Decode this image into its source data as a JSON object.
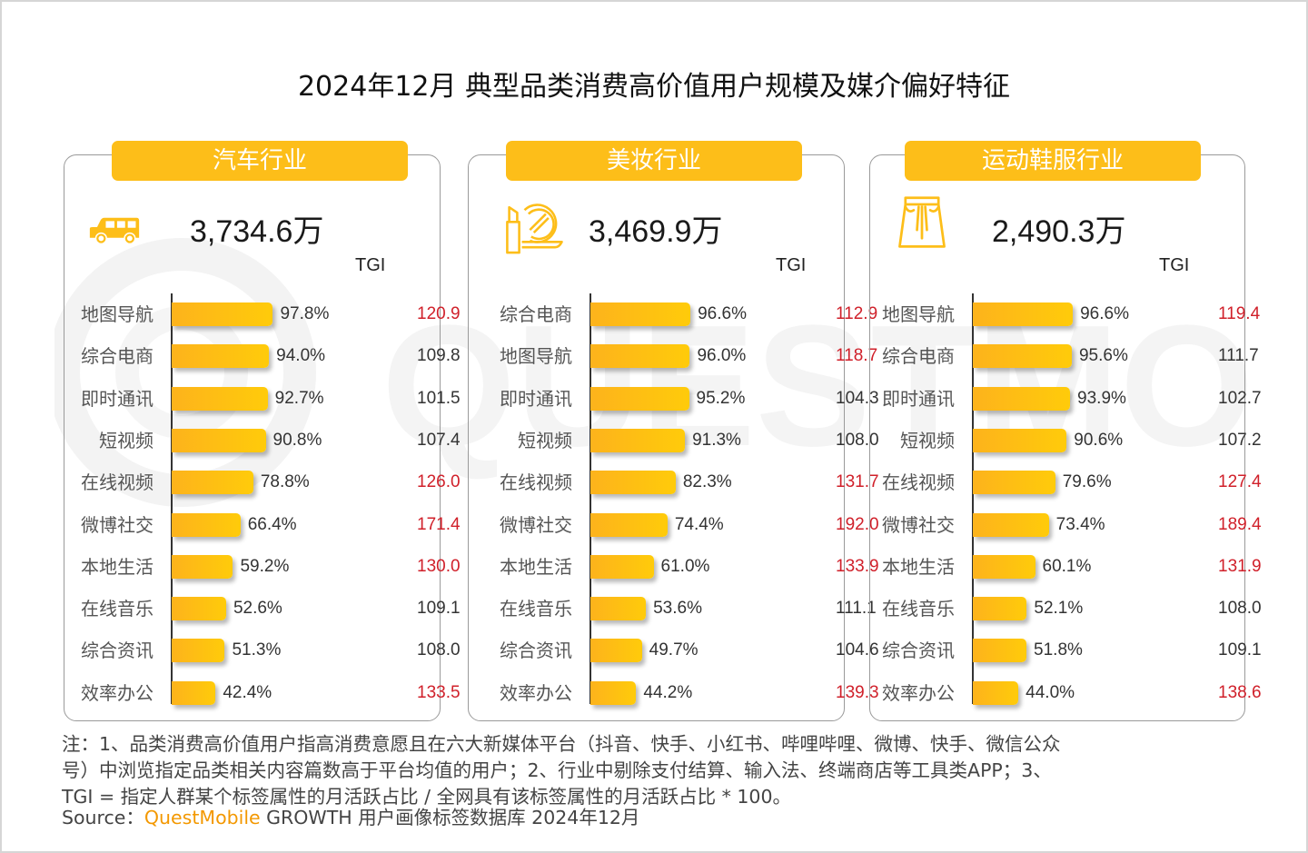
{
  "title": "2024年12月 典型品类消费高价值用户规模及媒介偏好特征",
  "watermark": "QUESTMOBILE",
  "colors": {
    "accent": "#FDBE19",
    "bar_start": "#FDB31C",
    "bar_end": "#FFCB0A",
    "tgi_high": "#D0202A",
    "tgi_normal": "#333333",
    "brand": "#F39800"
  },
  "chart_data": [
    {
      "type": "bar",
      "orientation": "horizontal",
      "title": "汽车行业",
      "icon": "car-icon",
      "total_users": "3,734.6万",
      "tgi_header": "TGI",
      "categories": [
        "地图导航",
        "综合电商",
        "即时通讯",
        "短视频",
        "在线视频",
        "微博社交",
        "本地生活",
        "在线音乐",
        "综合资讯",
        "效率办公"
      ],
      "values": [
        97.8,
        94.0,
        92.7,
        90.8,
        78.8,
        66.4,
        59.2,
        52.6,
        51.3,
        42.4
      ],
      "value_labels": [
        "97.8%",
        "94.0%",
        "92.7%",
        "90.8%",
        "78.8%",
        "66.4%",
        "59.2%",
        "52.6%",
        "51.3%",
        "42.4%"
      ],
      "tgi": [
        120.9,
        109.8,
        101.5,
        107.4,
        126.0,
        171.4,
        130.0,
        109.1,
        108.0,
        133.5
      ],
      "tgi_labels": [
        "120.9",
        "109.8",
        "101.5",
        "107.4",
        "126.0",
        "171.4",
        "130.0",
        "109.1",
        "108.0",
        "133.5"
      ],
      "tgi_highlight": [
        true,
        false,
        false,
        false,
        true,
        true,
        true,
        false,
        false,
        true
      ],
      "xlim": [
        0,
        100
      ],
      "unit": "%"
    },
    {
      "type": "bar",
      "orientation": "horizontal",
      "title": "美妆行业",
      "icon": "lipstick-mirror-icon",
      "total_users": "3,469.9万",
      "tgi_header": "TGI",
      "categories": [
        "综合电商",
        "地图导航",
        "即时通讯",
        "短视频",
        "在线视频",
        "微博社交",
        "本地生活",
        "在线音乐",
        "综合资讯",
        "效率办公"
      ],
      "values": [
        96.6,
        96.0,
        95.2,
        91.3,
        82.3,
        74.4,
        61.0,
        53.6,
        49.7,
        44.2
      ],
      "value_labels": [
        "96.6%",
        "96.0%",
        "95.2%",
        "91.3%",
        "82.3%",
        "74.4%",
        "61.0%",
        "53.6%",
        "49.7%",
        "44.2%"
      ],
      "tgi": [
        112.9,
        118.7,
        104.3,
        108.0,
        131.7,
        192.0,
        133.9,
        111.1,
        104.6,
        139.3
      ],
      "tgi_labels": [
        "112.9",
        "118.7",
        "104.3",
        "108.0",
        "131.7",
        "192.0",
        "133.9",
        "111.1",
        "104.6",
        "139.3"
      ],
      "tgi_highlight": [
        true,
        true,
        false,
        false,
        true,
        true,
        true,
        false,
        false,
        true
      ],
      "xlim": [
        0,
        100
      ],
      "unit": "%"
    },
    {
      "type": "bar",
      "orientation": "horizontal",
      "title": "运动鞋服行业",
      "icon": "skirt-icon",
      "total_users": "2,490.3万",
      "tgi_header": "TGI",
      "categories": [
        "地图导航",
        "综合电商",
        "即时通讯",
        "短视频",
        "在线视频",
        "微博社交",
        "本地生活",
        "在线音乐",
        "综合资讯",
        "效率办公"
      ],
      "values": [
        96.6,
        95.6,
        93.9,
        90.6,
        79.6,
        73.4,
        60.1,
        52.1,
        51.8,
        44.0
      ],
      "value_labels": [
        "96.6%",
        "95.6%",
        "93.9%",
        "90.6%",
        "79.6%",
        "73.4%",
        "60.1%",
        "52.1%",
        "51.8%",
        "44.0%"
      ],
      "tgi": [
        119.4,
        111.7,
        102.7,
        107.2,
        127.4,
        189.4,
        131.9,
        108.0,
        109.1,
        138.6
      ],
      "tgi_labels": [
        "119.4",
        "111.7",
        "102.7",
        "107.2",
        "127.4",
        "189.4",
        "131.9",
        "108.0",
        "109.1",
        "138.6"
      ],
      "tgi_highlight": [
        true,
        false,
        false,
        false,
        true,
        true,
        true,
        false,
        false,
        true
      ],
      "xlim": [
        0,
        100
      ],
      "unit": "%"
    }
  ],
  "notes": {
    "line1": "注：1、品类消费高价值用户指高消费意愿且在六大新媒体平台（抖音、快手、小红书、哔哩哔哩、微博、快手、微信公众",
    "line2": "号）中浏览指定品类相关内容篇数高于平台均值的用户；2、行业中剔除支付结算、输入法、终端商店等工具类APP；3、",
    "line3": "TGI = 指定人群某个标签属性的月活跃占比 / 全网具有该标签属性的月活跃占比 * 100。",
    "source_prefix": "Source：",
    "source_brand": "QuestMobile",
    "source_suffix": " GROWTH 用户画像标签数据库 2024年12月"
  }
}
